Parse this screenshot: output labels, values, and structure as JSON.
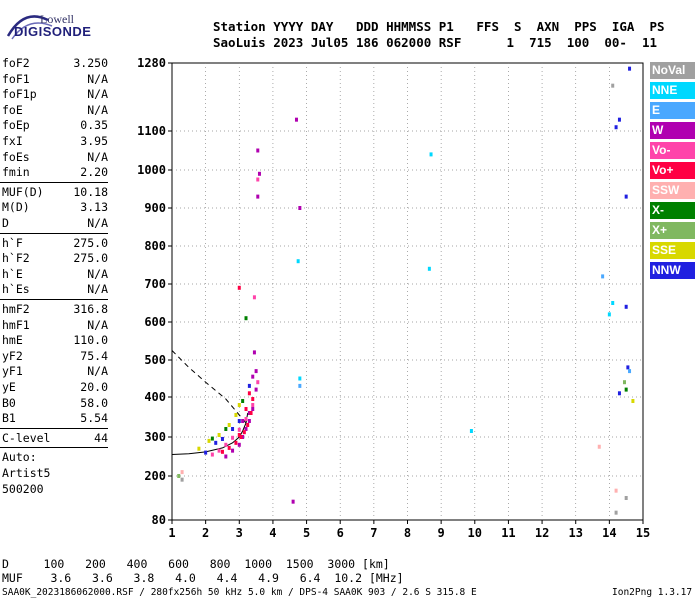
{
  "logo": {
    "line1": "Lowell",
    "line2": "DIGISONDE"
  },
  "header": {
    "line1": "Station YYYY DAY   DDD HHMMSS P1   FFS  S  AXN  PPS  IGA  PS",
    "line2": "SaoLuis 2023 Jul05 186 062000 RSF      1  715  100  00-  11"
  },
  "side_groups": [
    {
      "rows": [
        [
          "foF2",
          "3.250"
        ],
        [
          "foF1",
          "N/A"
        ],
        [
          "foF1p",
          "N/A"
        ],
        [
          "foE",
          "N/A"
        ],
        [
          "foEp",
          "0.35"
        ],
        [
          "fxI",
          "3.95"
        ],
        [
          "foEs",
          "N/A"
        ],
        [
          "fmin",
          "2.20"
        ]
      ]
    },
    {
      "rows": [
        [
          "MUF(D)",
          "10.18"
        ],
        [
          "M(D)",
          "3.13"
        ],
        [
          "D",
          "N/A"
        ]
      ]
    },
    {
      "rows": [
        [
          "h`F",
          "275.0"
        ],
        [
          "h`F2",
          "275.0"
        ],
        [
          "h`E",
          "N/A"
        ],
        [
          "h`Es",
          "N/A"
        ]
      ]
    },
    {
      "rows": [
        [
          "hmF2",
          "316.8"
        ],
        [
          "hmF1",
          "N/A"
        ],
        [
          "hmE",
          "110.0"
        ],
        [
          "yF2",
          "75.4"
        ],
        [
          "yF1",
          "N/A"
        ],
        [
          "yE",
          "20.0"
        ],
        [
          "B0",
          "58.0"
        ],
        [
          "B1",
          "5.54"
        ]
      ]
    },
    {
      "rows": [
        [
          "C-level",
          "44"
        ]
      ]
    },
    {
      "rows": [
        [
          "Auto:",
          ""
        ],
        [
          "Artist5",
          ""
        ],
        [
          "500200",
          ""
        ]
      ]
    }
  ],
  "legend": [
    {
      "label": "NoVal",
      "color": "#a0a0a0"
    },
    {
      "label": "NNE",
      "color": "#00d8ff"
    },
    {
      "label": "E",
      "color": "#4aa8ff"
    },
    {
      "label": "W",
      "color": "#b000b0"
    },
    {
      "label": "Vo-",
      "color": "#ff44aa"
    },
    {
      "label": "Vo+",
      "color": "#ff0044"
    },
    {
      "label": "SSW",
      "color": "#ffb0b0"
    },
    {
      "label": "X-",
      "color": "#008000"
    },
    {
      "label": "X+",
      "color": "#80b860"
    },
    {
      "label": "SSE",
      "color": "#d8d800"
    },
    {
      "label": "NNW",
      "color": "#2020e0"
    }
  ],
  "footer": {
    "dist_line": "D     100   200   400   600   800  1000  1500  3000 [km]",
    "muf_line": "MUF    3.6   3.6   3.8   4.0   4.4   4.9   6.4  10.2 [MHz]",
    "file_line": "SAA0K_2023186062000.RSF / 280fx256h 50 kHz 5.0 km / DPS-4 SAA0K 903 / 2.6 S 315.8 E",
    "version": "Ion2Png 1.3.17"
  },
  "chart_data": {
    "type": "scatter",
    "title": "",
    "xlabel": "",
    "ylabel": "",
    "xlim": [
      1,
      15
    ],
    "ylim": [
      80,
      1290
    ],
    "y_scale": "nonlinear (ionogram virtual height)",
    "x_ticks": [
      1,
      2,
      3,
      4,
      5,
      6,
      7,
      8,
      9,
      10,
      11,
      12,
      13,
      14,
      15
    ],
    "y_ticks": [
      80,
      200,
      300,
      400,
      500,
      600,
      700,
      800,
      900,
      1000,
      1100,
      1280
    ],
    "grid": true,
    "series": [
      {
        "name": "W",
        "points": [
          [
            2.6,
            250
          ],
          [
            2.8,
            265
          ],
          [
            3.0,
            280
          ],
          [
            3.1,
            300
          ],
          [
            3.2,
            320
          ],
          [
            3.3,
            340
          ],
          [
            3.4,
            370
          ],
          [
            3.5,
            420
          ],
          [
            3.5,
            470
          ],
          [
            3.45,
            520
          ],
          [
            3.55,
            930
          ],
          [
            3.6,
            990
          ],
          [
            3.55,
            1050
          ],
          [
            4.7,
            1130
          ],
          [
            4.8,
            900
          ],
          [
            4.6,
            130
          ],
          [
            3.1,
            340
          ],
          [
            3.3,
            360
          ],
          [
            3.4,
            455
          ]
        ]
      },
      {
        "name": "Vo+",
        "points": [
          [
            2.5,
            262
          ],
          [
            2.7,
            272
          ],
          [
            2.9,
            285
          ],
          [
            3.05,
            300
          ],
          [
            3.15,
            312
          ],
          [
            3.25,
            330
          ],
          [
            3.35,
            360
          ],
          [
            3.4,
            395
          ],
          [
            3.3,
            410
          ],
          [
            3.2,
            370
          ],
          [
            3.0,
            305
          ],
          [
            3.0,
            690
          ]
        ]
      },
      {
        "name": "Vo-",
        "points": [
          [
            2.2,
            255
          ],
          [
            2.4,
            265
          ],
          [
            2.6,
            280
          ],
          [
            2.8,
            298
          ],
          [
            3.0,
            318
          ],
          [
            3.2,
            345
          ],
          [
            3.4,
            380
          ],
          [
            3.55,
            440
          ],
          [
            3.55,
            975
          ],
          [
            3.45,
            665
          ]
        ]
      },
      {
        "name": "NNW",
        "points": [
          [
            2.0,
            260
          ],
          [
            2.3,
            285
          ],
          [
            2.5,
            295
          ],
          [
            2.8,
            320
          ],
          [
            3.0,
            340
          ],
          [
            3.3,
            430
          ],
          [
            14.2,
            1110
          ],
          [
            14.3,
            1130
          ],
          [
            14.6,
            1265
          ],
          [
            14.5,
            930
          ],
          [
            14.5,
            640
          ],
          [
            14.55,
            480
          ],
          [
            14.3,
            410
          ]
        ]
      },
      {
        "name": "SSE",
        "points": [
          [
            1.8,
            270
          ],
          [
            2.1,
            290
          ],
          [
            2.4,
            305
          ],
          [
            2.7,
            330
          ],
          [
            2.9,
            355
          ],
          [
            3.0,
            380
          ],
          [
            14.7,
            390
          ]
        ]
      },
      {
        "name": "X-",
        "points": [
          [
            2.2,
            296
          ],
          [
            2.6,
            320
          ],
          [
            3.1,
            390
          ],
          [
            3.2,
            610
          ],
          [
            14.5,
            420
          ]
        ]
      },
      {
        "name": "NNE",
        "points": [
          [
            4.75,
            760
          ],
          [
            4.8,
            450
          ],
          [
            8.7,
            1040
          ],
          [
            8.65,
            740
          ],
          [
            9.9,
            315
          ],
          [
            14.0,
            620
          ],
          [
            14.1,
            650
          ]
        ]
      },
      {
        "name": "E",
        "points": [
          [
            4.8,
            430
          ],
          [
            13.8,
            720
          ],
          [
            14.6,
            470
          ]
        ]
      },
      {
        "name": "SSW",
        "points": [
          [
            1.3,
            210
          ],
          [
            13.7,
            275
          ],
          [
            14.2,
            160
          ]
        ]
      },
      {
        "name": "X+",
        "points": [
          [
            1.2,
            200
          ],
          [
            14.45,
            440
          ]
        ]
      },
      {
        "name": "NoVal",
        "points": [
          [
            1.3,
            190
          ],
          [
            14.2,
            100
          ],
          [
            14.5,
            140
          ],
          [
            14.1,
            1220
          ]
        ]
      }
    ]
  }
}
